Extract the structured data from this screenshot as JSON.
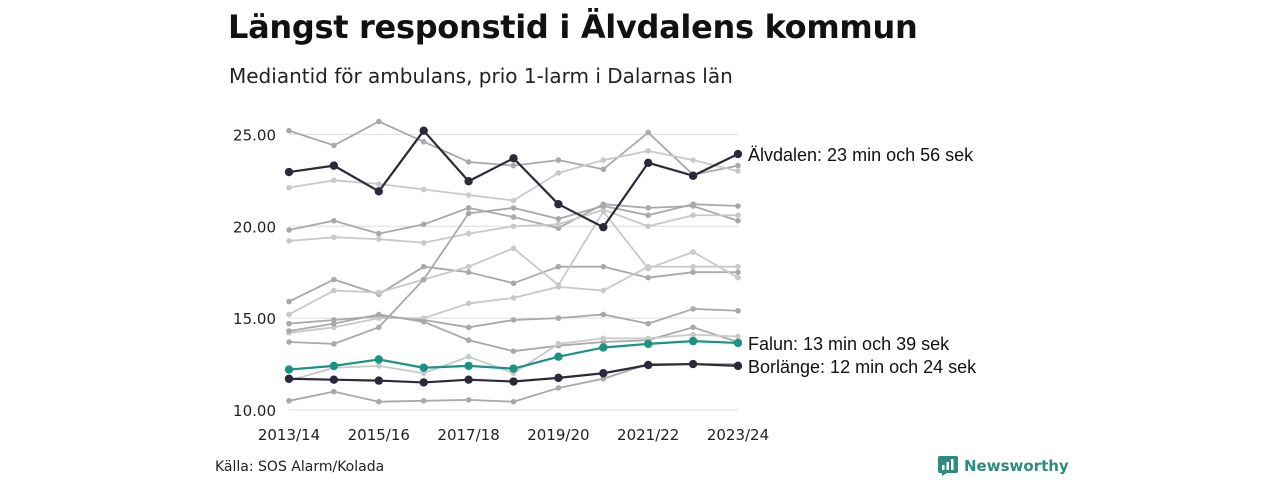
{
  "title": "Längst responstid i Älvdalens kommun",
  "subtitle": "Mediantid för ambulans, prio 1-larm i Dalarnas län",
  "source": "Källa: SOS Alarm/Kolada",
  "brand": "Newsworthy",
  "colors": {
    "highlight_dark": "#2b2a3a",
    "highlight_teal": "#1a9284",
    "background_lines": [
      "#a9a9a9",
      "#c9c9c9"
    ],
    "grid": "#dddddd"
  },
  "chart_data": {
    "type": "line",
    "x": [
      "2013/14",
      "2014/15",
      "2015/16",
      "2016/17",
      "2017/18",
      "2018/19",
      "2019/20",
      "2020/21",
      "2021/22",
      "2022/23",
      "2023/24"
    ],
    "x_tick_labels": [
      "2013/14",
      "2015/16",
      "2017/18",
      "2019/20",
      "2021/22",
      "2023/24"
    ],
    "y_ticks": [
      "10.00",
      "15.00",
      "20.00",
      "25.00"
    ],
    "ylim": [
      10,
      26
    ],
    "grid": true,
    "series": [
      {
        "name": "Älvdalen",
        "label": "Älvdalen: 23 min och 56 sek",
        "highlight": true,
        "color": "#2b2a3a",
        "values": [
          22.95,
          23.3,
          21.9,
          25.2,
          22.45,
          23.7,
          21.2,
          19.95,
          23.45,
          22.75,
          23.93
        ]
      },
      {
        "name": "Falun",
        "label": "Falun: 13 min och 39 sek",
        "highlight": true,
        "color": "#1a9284",
        "values": [
          12.2,
          12.4,
          12.75,
          12.3,
          12.4,
          12.25,
          12.9,
          13.4,
          13.6,
          13.75,
          13.65
        ]
      },
      {
        "name": "Borlänge",
        "label": "Borlänge: 12 min och 24 sek",
        "highlight": true,
        "color": "#2b2a3a",
        "values": [
          11.7,
          11.65,
          11.6,
          11.5,
          11.65,
          11.55,
          11.75,
          12.0,
          12.45,
          12.5,
          12.4
        ]
      },
      {
        "highlight": false,
        "color": "#a9a9a9",
        "values": [
          25.2,
          24.4,
          25.7,
          24.6,
          23.5,
          23.3,
          23.6,
          23.1,
          25.1,
          22.8,
          23.3
        ]
      },
      {
        "highlight": false,
        "color": "#c9c9c9",
        "values": [
          22.1,
          22.5,
          22.3,
          22.0,
          21.7,
          21.4,
          22.9,
          23.6,
          24.1,
          23.6,
          23.0
        ]
      },
      {
        "highlight": false,
        "color": "#a9a9a9",
        "values": [
          19.8,
          20.3,
          19.6,
          20.1,
          21.0,
          20.5,
          19.9,
          21.2,
          21.0,
          21.1,
          20.3
        ]
      },
      {
        "highlight": false,
        "color": "#c9c9c9",
        "values": [
          19.2,
          19.4,
          19.3,
          19.1,
          19.6,
          20.0,
          20.1,
          20.9,
          20.0,
          20.6,
          20.6
        ]
      },
      {
        "highlight": false,
        "color": "#a9a9a9",
        "values": [
          15.9,
          17.1,
          16.3,
          17.8,
          17.5,
          16.9,
          17.8,
          17.8,
          17.2,
          17.5,
          17.5
        ]
      },
      {
        "highlight": false,
        "color": "#c9c9c9",
        "values": [
          15.2,
          16.5,
          16.4,
          17.1,
          17.8,
          18.8,
          16.8,
          20.8,
          17.7,
          18.6,
          17.2
        ]
      },
      {
        "highlight": false,
        "color": "#a9a9a9",
        "values": [
          14.7,
          14.9,
          15.1,
          14.9,
          14.5,
          14.9,
          15.0,
          15.2,
          14.7,
          15.5,
          15.4
        ]
      },
      {
        "highlight": false,
        "color": "#c9c9c9",
        "values": [
          14.2,
          14.5,
          15.0,
          15.0,
          15.8,
          16.1,
          16.7,
          16.5,
          17.8,
          17.8,
          17.8
        ]
      },
      {
        "highlight": false,
        "color": "#a9a9a9",
        "values": [
          13.7,
          13.6,
          14.5,
          17.1,
          20.7,
          21.0,
          20.4,
          21.1,
          20.6,
          21.2,
          21.1
        ]
      },
      {
        "highlight": false,
        "color": "#a9a9a9",
        "values": [
          14.3,
          14.7,
          15.2,
          14.8,
          13.8,
          13.2,
          13.5,
          13.7,
          13.8,
          14.5,
          13.7
        ]
      },
      {
        "highlight": false,
        "color": "#c9c9c9",
        "values": [
          11.6,
          12.3,
          12.4,
          12.0,
          12.9,
          12.0,
          13.6,
          13.9,
          13.9,
          14.1,
          14.0
        ]
      },
      {
        "highlight": false,
        "color": "#a9a9a9",
        "values": [
          10.5,
          11.0,
          10.45,
          10.5,
          10.55,
          10.45,
          11.2,
          11.7,
          12.5,
          12.5,
          12.5
        ]
      }
    ]
  }
}
